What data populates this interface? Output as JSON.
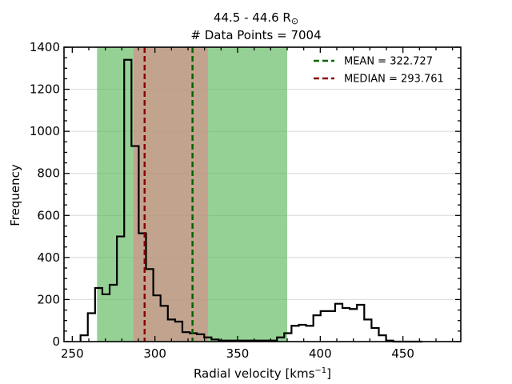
{
  "chart_data": {
    "type": "histogram",
    "title_line1": "44.5 - 44.6 R",
    "title_symbol": "⊙",
    "title_line2": "# Data Points = 7004",
    "xlabel": "Radial velocity [kms",
    "xlabel_sup": "−1",
    "xlabel_end": "]",
    "ylabel": "Frequency",
    "xlim": [
      245,
      485
    ],
    "ylim": [
      0,
      1400
    ],
    "xticks": [
      250,
      300,
      350,
      400,
      450
    ],
    "yticks": [
      0,
      200,
      400,
      600,
      800,
      1000,
      1200,
      1400
    ],
    "grid": "horizontal",
    "legend_placement": "top-right",
    "shaded_regions": [
      {
        "x0": 265,
        "x1": 380,
        "color": "#5cb85c",
        "opacity": 0.65
      },
      {
        "x0": 287,
        "x1": 332,
        "color": "#d98a8a",
        "opacity": 0.65
      }
    ],
    "vlines": [
      {
        "name": "MEAN = 322.727",
        "x": 322.727,
        "color": "#006400"
      },
      {
        "name": "MEDIAN = 293.761",
        "x": 293.761,
        "color": "#8b0000"
      }
    ],
    "bin_edges": [
      255,
      259.4,
      263.8,
      268.2,
      272.6,
      277,
      281.4,
      285.8,
      290.2,
      294.6,
      299,
      303.4,
      307.8,
      312.2,
      316.6,
      321,
      325.4,
      329.8,
      334.2,
      338.6,
      343,
      347.4,
      351.8,
      356.2,
      360.6,
      365,
      369.4,
      373.8,
      378.2,
      382.6,
      387,
      391.4,
      395.8,
      400.2,
      404.6,
      409,
      413.4,
      417.8,
      422.2,
      426.6,
      431,
      435.4,
      439.8,
      444.2,
      448.6,
      453,
      457.4,
      461.8
    ],
    "counts": [
      30,
      135,
      255,
      225,
      270,
      500,
      1340,
      930,
      515,
      345,
      220,
      170,
      105,
      95,
      45,
      40,
      35,
      20,
      10,
      5,
      5,
      5,
      5,
      5,
      5,
      5,
      5,
      20,
      40,
      75,
      80,
      75,
      125,
      145,
      145,
      180,
      160,
      155,
      175,
      105,
      65,
      30,
      5,
      0,
      0,
      0,
      0
    ],
    "color": "#000000"
  }
}
